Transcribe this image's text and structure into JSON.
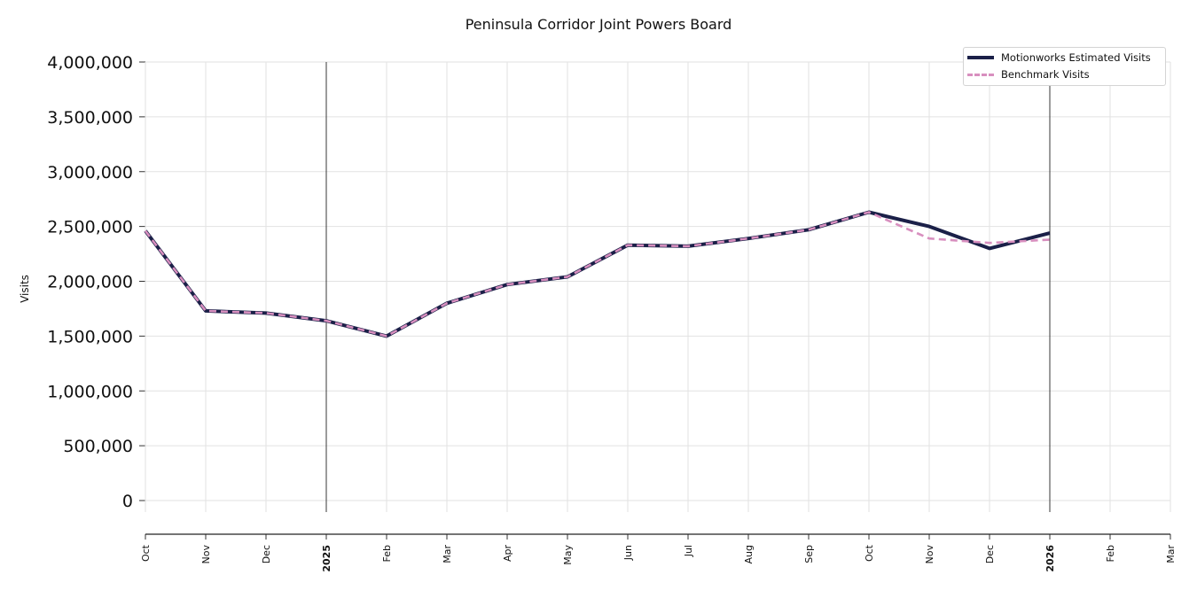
{
  "chart_data": {
    "type": "line",
    "title": "Peninsula Corridor Joint Powers Board",
    "xlabel": "",
    "ylabel": "Visits",
    "x": [
      "2024-10",
      "2024-11",
      "2024-12",
      "2025-01",
      "2025-02",
      "2025-03",
      "2025-04",
      "2025-05",
      "2025-06",
      "2025-07",
      "2025-08",
      "2025-09",
      "2025-10",
      "2025-11",
      "2025-12",
      "2026-01"
    ],
    "x_tick_labels": [
      "Oct",
      "Nov",
      "Dec",
      "2025",
      "Feb",
      "Mar",
      "Apr",
      "May",
      "Jun",
      "Jul",
      "Aug",
      "Sep",
      "Oct",
      "Nov",
      "Dec",
      "2026",
      "Feb",
      "Mar"
    ],
    "year_ticks": [
      "2025",
      "2026"
    ],
    "xlim": [
      "2024-10",
      "2026-03"
    ],
    "ylim": [
      0,
      4000000
    ],
    "y_ticks": [
      0,
      500000,
      1000000,
      1500000,
      2000000,
      2500000,
      3000000,
      3500000,
      4000000
    ],
    "y_tick_labels": [
      "0",
      "500,000",
      "1,000,000",
      "1,500,000",
      "2,000,000",
      "2,500,000",
      "3,000,000",
      "3,500,000",
      "4,000,000"
    ],
    "series": [
      {
        "name": "Motionworks Estimated Visits",
        "color": "#1b2048",
        "style": "solid",
        "values": [
          2460000,
          1730000,
          1710000,
          1640000,
          1500000,
          1800000,
          1970000,
          2040000,
          2330000,
          2320000,
          2390000,
          2470000,
          2630000,
          2500000,
          2300000,
          2440000
        ]
      },
      {
        "name": "Benchmark Visits",
        "color": "#d88fbf",
        "style": "dashed",
        "values": [
          2460000,
          1730000,
          1710000,
          1640000,
          1500000,
          1800000,
          1970000,
          2040000,
          2330000,
          2320000,
          2390000,
          2470000,
          2630000,
          2390000,
          2350000,
          2380000
        ]
      }
    ],
    "grid": true,
    "legend_position": "top-right"
  }
}
